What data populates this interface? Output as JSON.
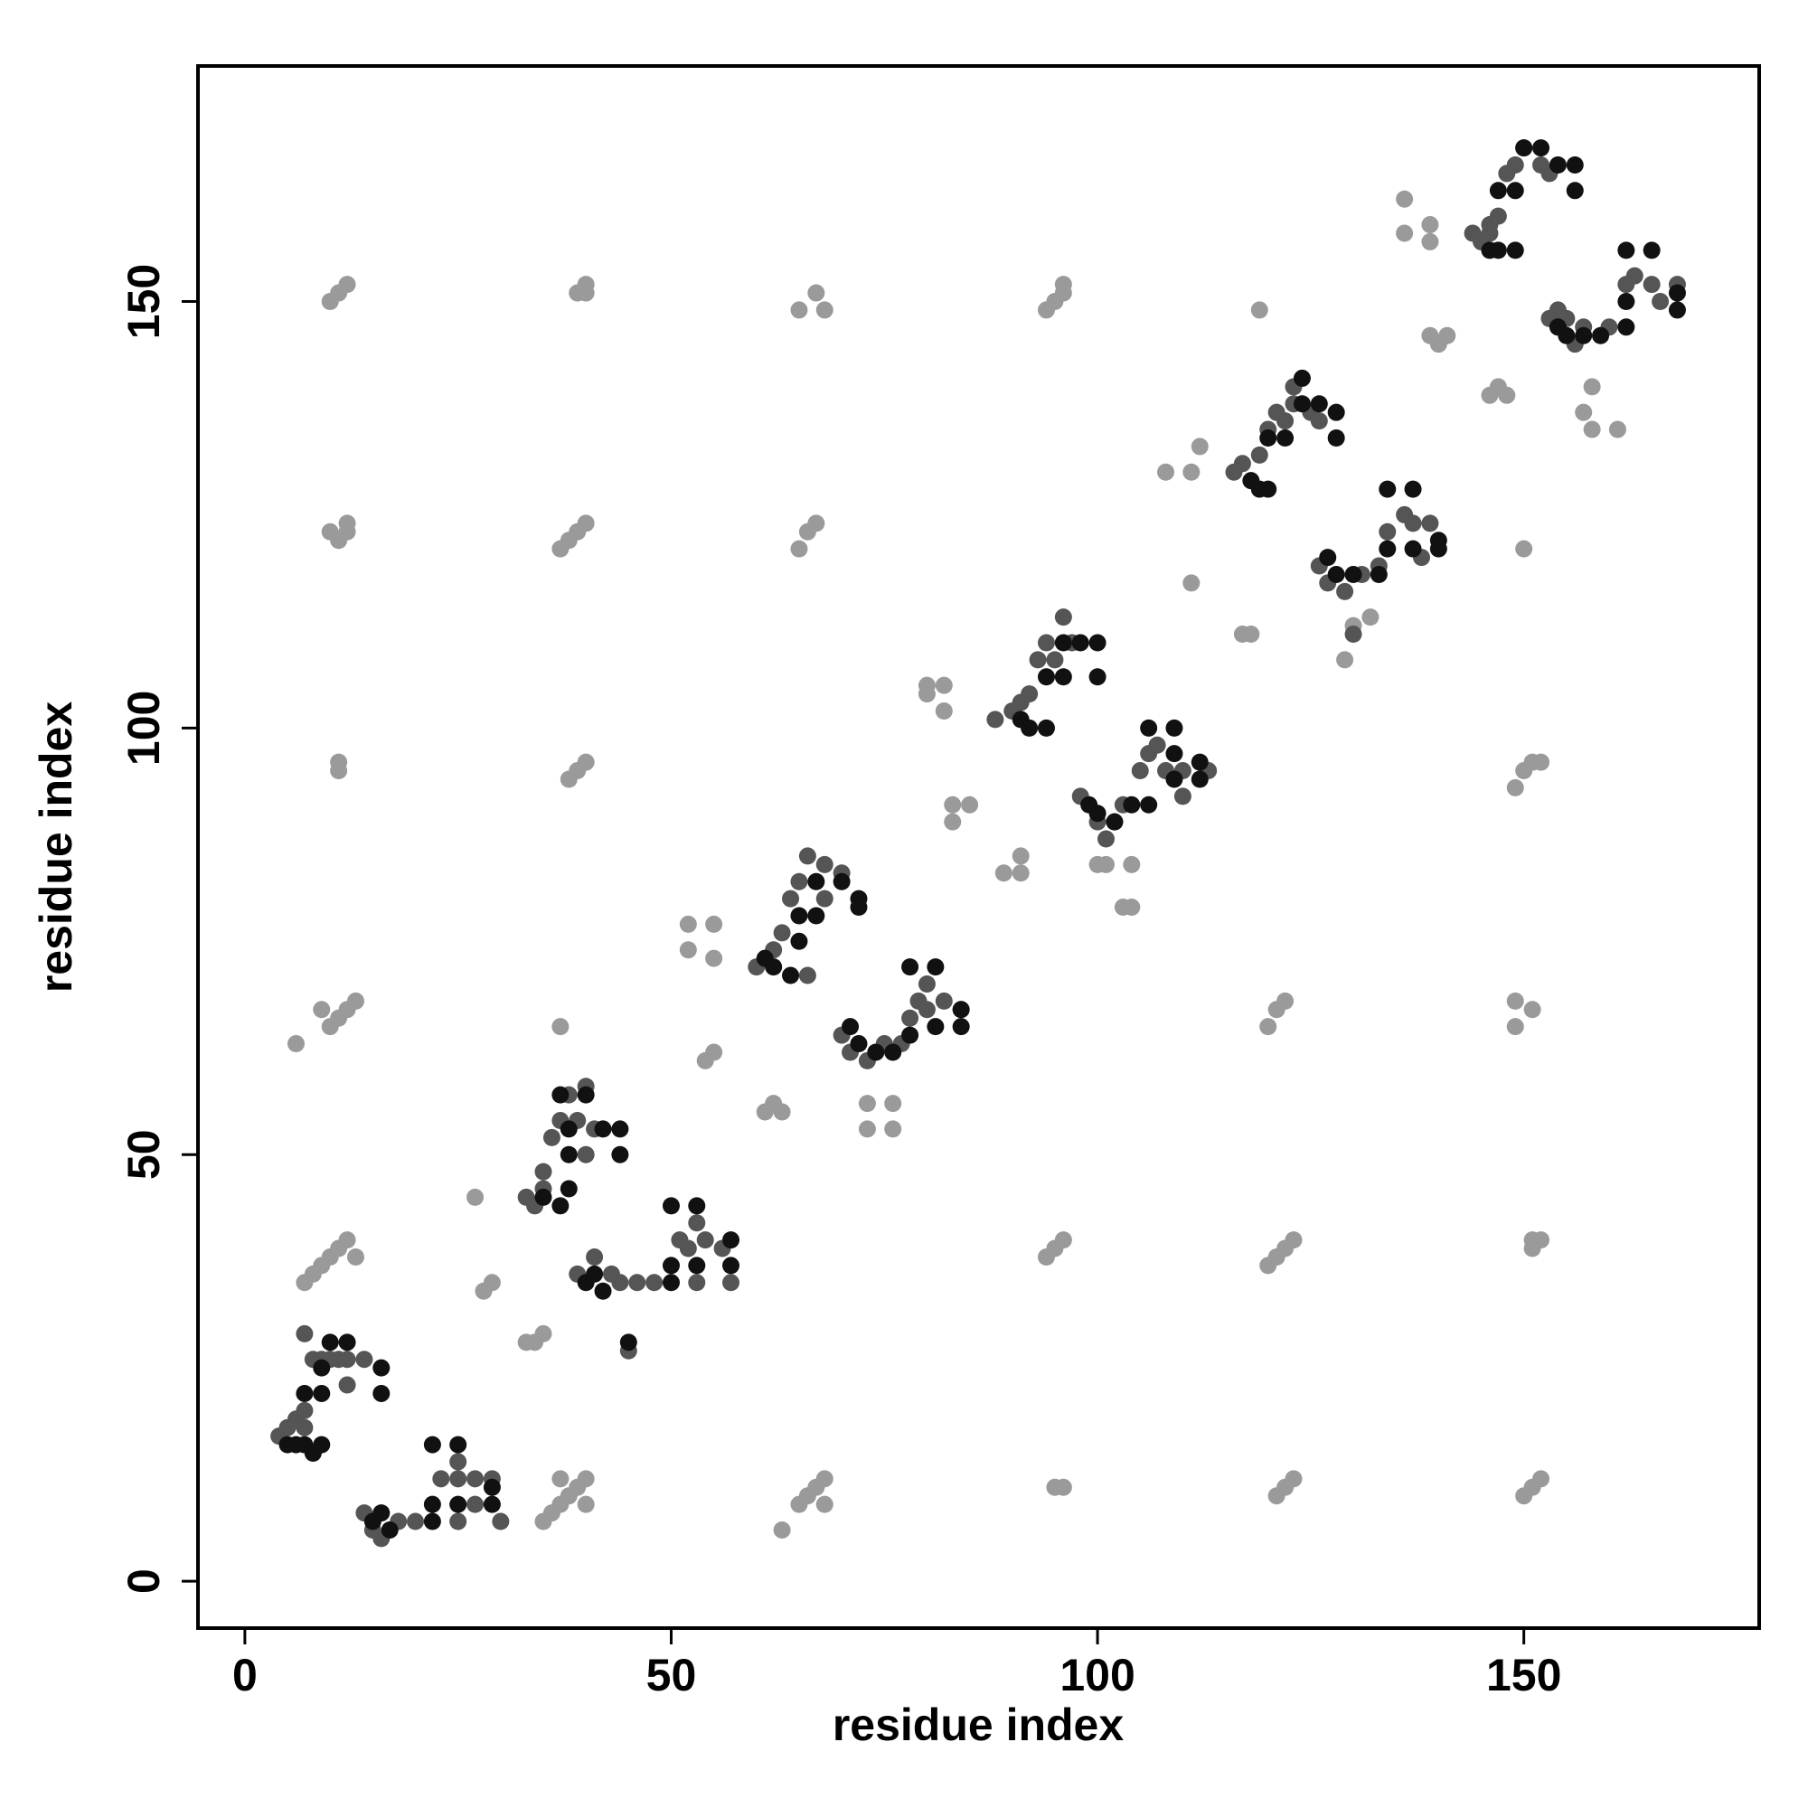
{
  "chart_data": {
    "type": "scatter",
    "xlabel": "residue index",
    "ylabel": "residue index",
    "xlim": [
      -5.5,
      177.6
    ],
    "ylim": [
      -5.5,
      177.6
    ],
    "xticks": [
      0,
      50,
      100,
      150
    ],
    "yticks": [
      0,
      50,
      100,
      150
    ],
    "grid": false,
    "series": [
      {
        "color": "#9a9a9a",
        "x": [
          10,
          11,
          12,
          39,
          40,
          40,
          65,
          67,
          68,
          94,
          95,
          96,
          96,
          119,
          10,
          11,
          12,
          12,
          37,
          38,
          39,
          40,
          65,
          66,
          67,
          11,
          11,
          38,
          39,
          40,
          149,
          150,
          151,
          152,
          9,
          10,
          11,
          12,
          13,
          6,
          37,
          120,
          121,
          122,
          149,
          149,
          151,
          7,
          8,
          9,
          10,
          11,
          12,
          13,
          94,
          95,
          96,
          120,
          121,
          122,
          123,
          151,
          151,
          152,
          35,
          36,
          37,
          38,
          39,
          40,
          37,
          40,
          63,
          65,
          66,
          67,
          68,
          68,
          95,
          96,
          121,
          122,
          123,
          150,
          151,
          152,
          27,
          28,
          29,
          33,
          34,
          35,
          52,
          52,
          55,
          55,
          54,
          55,
          61,
          62,
          63,
          73,
          73,
          76,
          76,
          80,
          80,
          82,
          82,
          83,
          83,
          85,
          89,
          91,
          91,
          100,
          101,
          104,
          103,
          104,
          108,
          111,
          112,
          111,
          117,
          118,
          130,
          129,
          132,
          136,
          136,
          139,
          139,
          139,
          140,
          141,
          146,
          147,
          148,
          150,
          157,
          158,
          161,
          158
        ],
        "values": [
          150,
          151,
          152,
          151,
          151,
          152,
          149,
          151,
          149,
          149,
          150,
          151,
          152,
          149,
          123,
          122,
          123,
          124,
          121,
          122,
          123,
          124,
          121,
          123,
          124,
          96,
          95,
          94,
          95,
          96,
          93,
          95,
          96,
          96,
          67,
          65,
          66,
          67,
          68,
          63,
          65,
          65,
          67,
          68,
          68,
          65,
          67,
          35,
          36,
          37,
          38,
          39,
          40,
          38,
          38,
          39,
          40,
          37,
          38,
          39,
          40,
          39,
          40,
          40,
          7,
          8,
          9,
          10,
          11,
          12,
          12,
          9,
          6,
          9,
          10,
          11,
          12,
          9,
          11,
          11,
          10,
          11,
          12,
          10,
          11,
          12,
          45,
          34,
          35,
          28,
          28,
          29,
          74,
          77,
          73,
          77,
          61,
          62,
          55,
          56,
          55,
          56,
          53,
          56,
          53,
          104,
          105,
          102,
          105,
          89,
          91,
          91,
          83,
          83,
          85,
          84,
          84,
          84,
          79,
          79,
          130,
          130,
          133,
          117,
          111,
          111,
          112,
          108,
          113,
          158,
          162,
          157,
          159,
          146,
          145,
          146,
          139,
          140,
          139,
          121,
          137,
          135,
          135,
          140
        ]
      },
      {
        "color": "#555555",
        "x": [
          4,
          5,
          6,
          7,
          7,
          8,
          9,
          10,
          11,
          12,
          14,
          12,
          7,
          14,
          15,
          16,
          18,
          20,
          23,
          25,
          25,
          25,
          27,
          27,
          30,
          29,
          33,
          34,
          35,
          35,
          36,
          37,
          39,
          40,
          41,
          40,
          38,
          39,
          41,
          43,
          44,
          46,
          48,
          45,
          51,
          52,
          53,
          54,
          56,
          53,
          57,
          60,
          62,
          63,
          64,
          65,
          66,
          68,
          68,
          70,
          66,
          70,
          71,
          73,
          75,
          77,
          78,
          79,
          80,
          80,
          82,
          84,
          88,
          90,
          91,
          92,
          93,
          94,
          96,
          97,
          95,
          98,
          100,
          101,
          102,
          103,
          105,
          106,
          107,
          108,
          110,
          110,
          113,
          116,
          117,
          119,
          120,
          121,
          123,
          125,
          126,
          122,
          123,
          126,
          127,
          129,
          130,
          131,
          133,
          134,
          136,
          137,
          138,
          139,
          144,
          145,
          146,
          146,
          147,
          148,
          149,
          150,
          152,
          153,
          153,
          154,
          155,
          156,
          157,
          160,
          162,
          163,
          165,
          166,
          168
        ],
        "values": [
          17,
          18,
          19,
          20,
          18,
          26,
          26,
          26,
          26,
          26,
          26,
          23,
          29,
          8,
          6,
          5,
          7,
          7,
          12,
          12,
          14,
          7,
          12,
          9,
          7,
          12,
          45,
          44,
          46,
          48,
          52,
          54,
          54,
          58,
          53,
          50,
          57,
          36,
          38,
          36,
          35,
          35,
          35,
          27,
          40,
          39,
          42,
          40,
          39,
          35,
          35,
          72,
          74,
          76,
          80,
          82,
          85,
          84,
          80,
          83,
          71,
          64,
          62,
          61,
          63,
          63,
          66,
          68,
          67,
          70,
          68,
          67,
          101,
          102,
          103,
          104,
          108,
          110,
          113,
          110,
          108,
          92,
          89,
          87,
          89,
          91,
          95,
          97,
          98,
          95,
          95,
          92,
          95,
          130,
          131,
          132,
          135,
          137,
          138,
          137,
          136,
          136,
          140,
          119,
          117,
          116,
          111,
          118,
          119,
          123,
          125,
          124,
          120,
          124,
          158,
          157,
          158,
          159,
          160,
          165,
          166,
          168,
          166,
          165,
          148,
          149,
          148,
          145,
          147,
          147,
          152,
          153,
          152,
          150,
          152
        ]
      },
      {
        "color": "#111111",
        "x": [
          5,
          6,
          7,
          8,
          9,
          7,
          9,
          9,
          10,
          12,
          16,
          16,
          15,
          16,
          17,
          22,
          22,
          22,
          25,
          25,
          29,
          29,
          35,
          37,
          38,
          40,
          37,
          38,
          42,
          44,
          44,
          38,
          40,
          41,
          42,
          45,
          50,
          50,
          53,
          53,
          50,
          57,
          57,
          61,
          62,
          64,
          65,
          67,
          67,
          70,
          72,
          72,
          65,
          71,
          72,
          74,
          76,
          78,
          78,
          81,
          84,
          84,
          81,
          91,
          92,
          94,
          94,
          96,
          98,
          100,
          100,
          96,
          99,
          100,
          102,
          104,
          106,
          106,
          109,
          109,
          109,
          112,
          112,
          118,
          119,
          120,
          120,
          122,
          124,
          126,
          128,
          128,
          124,
          127,
          128,
          130,
          133,
          134,
          134,
          137,
          137,
          140,
          140,
          146,
          147,
          149,
          147,
          149,
          150,
          152,
          154,
          156,
          156,
          154,
          155,
          157,
          159,
          162,
          162,
          165,
          162,
          168,
          168
        ],
        "values": [
          16,
          16,
          16,
          15,
          16,
          22,
          22,
          25,
          28,
          28,
          25,
          22,
          7,
          8,
          6,
          7,
          16,
          9,
          16,
          9,
          11,
          9,
          45,
          44,
          50,
          57,
          57,
          53,
          53,
          53,
          50,
          46,
          35,
          36,
          34,
          28,
          37,
          35,
          44,
          37,
          44,
          40,
          37,
          73,
          72,
          71,
          78,
          78,
          82,
          82,
          80,
          79,
          75,
          65,
          63,
          62,
          62,
          64,
          72,
          72,
          67,
          65,
          65,
          101,
          100,
          100,
          106,
          106,
          110,
          110,
          106,
          110,
          91,
          90,
          89,
          91,
          91,
          100,
          100,
          94,
          97,
          94,
          96,
          129,
          128,
          128,
          134,
          134,
          138,
          138,
          137,
          134,
          141,
          120,
          118,
          118,
          118,
          121,
          128,
          128,
          121,
          122,
          121,
          156,
          156,
          156,
          163,
          163,
          168,
          168,
          166,
          166,
          163,
          147,
          146,
          146,
          146,
          147,
          150,
          156,
          156,
          151,
          149
        ]
      }
    ]
  }
}
